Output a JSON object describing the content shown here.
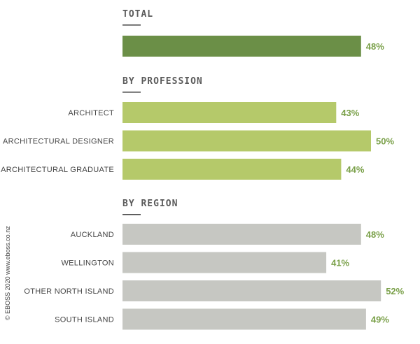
{
  "chart_data": {
    "type": "bar",
    "orientation": "horizontal",
    "xlim": [
      0,
      60
    ],
    "sections": [
      {
        "title": "TOTAL",
        "color": "#6b8f47",
        "label_color": "#7aa049",
        "categories": [
          ""
        ],
        "values": [
          48
        ]
      },
      {
        "title": "BY PROFESSION",
        "color": "#b5c96a",
        "label_color": "#7aa049",
        "categories": [
          "ARCHITECT",
          "ARCHITECTURAL DESIGNER",
          "ARCHITECTURAL GRADUATE"
        ],
        "values": [
          43,
          50,
          44
        ]
      },
      {
        "title": "BY REGION",
        "color": "#c6c7c2",
        "label_color": "#7aa049",
        "categories": [
          "AUCKLAND",
          "WELLINGTON",
          "OTHER NORTH ISLAND",
          "SOUTH ISLAND"
        ],
        "values": [
          48,
          41,
          52,
          49
        ]
      }
    ],
    "value_suffix": "%"
  },
  "credit": "© EBOSS 2020 www.eboss.co.nz",
  "colors": {
    "title_underline": "#4a4a4a"
  }
}
